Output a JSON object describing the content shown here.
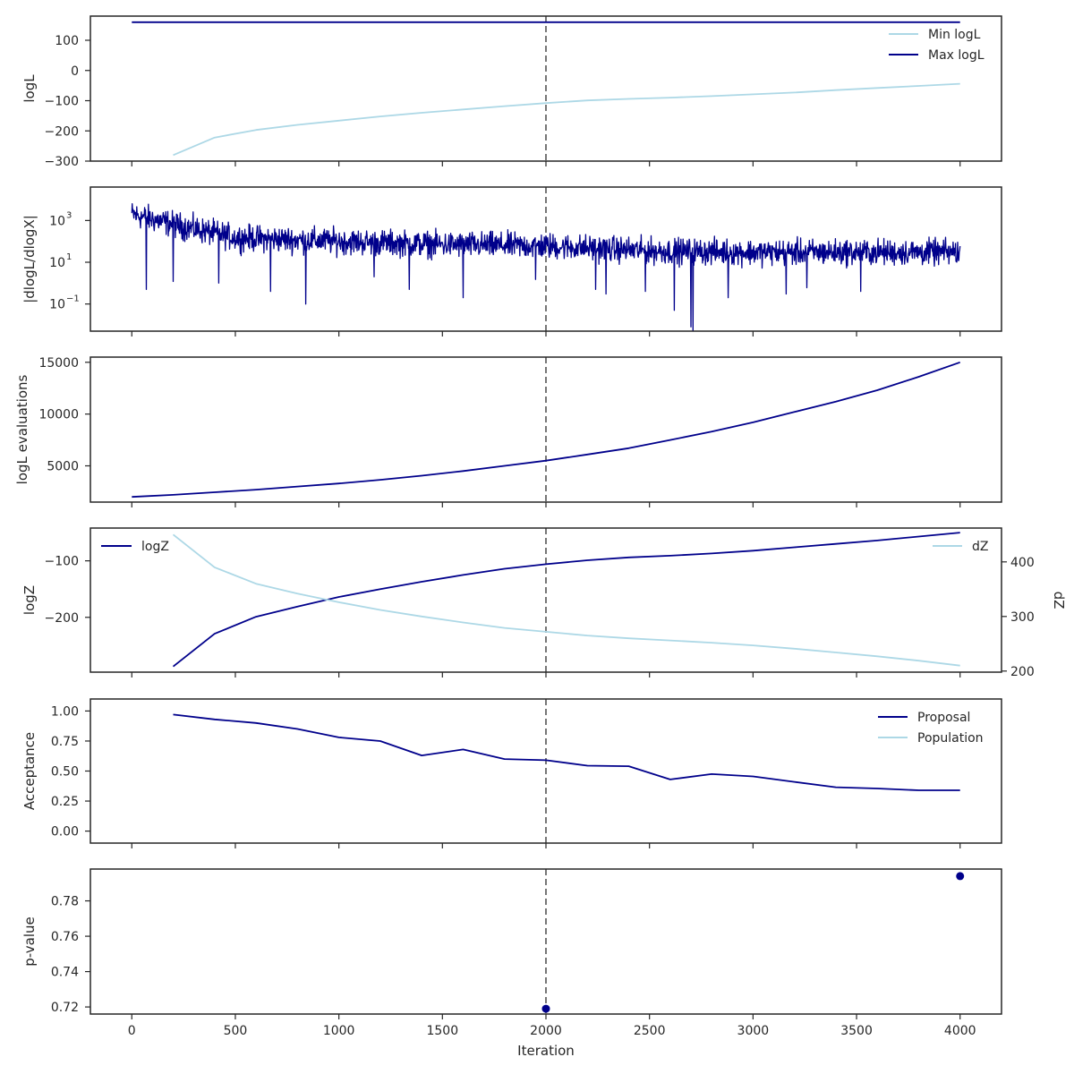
{
  "chart_data": [
    {
      "type": "line",
      "ylabel": "logL",
      "ylim": [
        -300,
        180
      ],
      "yticks": [
        -300,
        -200,
        -100,
        0,
        100
      ],
      "legend_position": "top-right",
      "series": [
        {
          "name": "Min logL",
          "color": "#add8e6",
          "x": [
            200,
            400,
            600,
            800,
            1000,
            1200,
            1400,
            1600,
            1800,
            2000,
            2200,
            2400,
            2600,
            2800,
            3000,
            3200,
            3400,
            3600,
            3800,
            4000
          ],
          "y": [
            -280,
            -222,
            -197,
            -180,
            -166,
            -152,
            -140,
            -129,
            -118,
            -108,
            -99,
            -94,
            -90,
            -85,
            -79,
            -73,
            -65,
            -58,
            -51,
            -44
          ]
        },
        {
          "name": "Max logL",
          "color": "#00008b",
          "x": [
            0,
            4000
          ],
          "y": [
            160,
            160
          ]
        }
      ]
    },
    {
      "type": "line",
      "ylabel": "|dlogL/dlogX|",
      "yscale": "log",
      "ylim": [
        0.005,
        40000
      ],
      "yticks": [
        0.1,
        10,
        1000
      ],
      "ytick_labels": [
        "10",
        "10",
        "10"
      ],
      "ytick_exponents": [
        "−1",
        "1",
        "3"
      ],
      "series": [
        {
          "name": "",
          "color": "#00008b",
          "noisy": true,
          "x": [
            0,
            250,
            500,
            1000,
            1500,
            2000,
            2500,
            3000,
            3500,
            4000
          ],
          "y": [
            2000,
            500,
            150,
            100,
            70,
            60,
            35,
            30,
            30,
            30
          ],
          "noise_decades": 0.45,
          "dips": [
            [
              70,
              0.5
            ],
            [
              200,
              1.2
            ],
            [
              420,
              1.0
            ],
            [
              670,
              0.4
            ],
            [
              840,
              0.1
            ],
            [
              1170,
              2
            ],
            [
              1340,
              0.5
            ],
            [
              1600,
              0.2
            ],
            [
              1950,
              1.5
            ],
            [
              2240,
              0.5
            ],
            [
              2290,
              0.3
            ],
            [
              2480,
              0.4
            ],
            [
              2620,
              0.05
            ],
            [
              2700,
              0.008
            ],
            [
              2710,
              0.004
            ],
            [
              2880,
              0.2
            ],
            [
              3160,
              0.3
            ],
            [
              3260,
              0.6
            ],
            [
              3520,
              0.4
            ]
          ]
        }
      ]
    },
    {
      "type": "line",
      "ylabel": "logL evaluations",
      "ylim": [
        1500,
        15500
      ],
      "yticks": [
        5000,
        10000,
        15000
      ],
      "series": [
        {
          "name": "",
          "color": "#00008b",
          "x": [
            0,
            200,
            400,
            600,
            800,
            1000,
            1200,
            1400,
            1600,
            1800,
            2000,
            2200,
            2400,
            2600,
            2800,
            3000,
            3200,
            3400,
            3600,
            3800,
            4000
          ],
          "y": [
            2000,
            2200,
            2450,
            2700,
            3000,
            3300,
            3650,
            4050,
            4500,
            5000,
            5500,
            6100,
            6700,
            7500,
            8300,
            9200,
            10200,
            11200,
            12300,
            13600,
            15000
          ]
        }
      ]
    },
    {
      "type": "line",
      "ylabel": "logZ",
      "ylabel_right": "dZ",
      "ylim": [
        -297,
        -42
      ],
      "yticks": [
        -200,
        -100
      ],
      "ylim_right": [
        198,
        462
      ],
      "yticks_right": [
        200,
        300,
        400
      ],
      "series": [
        {
          "name": "logZ",
          "color": "#00008b",
          "axis": "left",
          "legend_position": "top-left",
          "x": [
            200,
            400,
            600,
            800,
            1000,
            1200,
            1400,
            1600,
            1800,
            2000,
            2200,
            2400,
            2600,
            2800,
            3000,
            3200,
            3400,
            3600,
            3800,
            4000
          ],
          "y": [
            -287,
            -229,
            -199,
            -181,
            -164,
            -150,
            -137,
            -125,
            -114,
            -106,
            -99,
            -94,
            -91,
            -87,
            -82,
            -76,
            -70,
            -64,
            -57,
            -50
          ]
        },
        {
          "name": "dZ",
          "color": "#add8e6",
          "axis": "right",
          "legend_position": "top-right",
          "x": [
            200,
            400,
            600,
            800,
            1000,
            1200,
            1400,
            1600,
            1800,
            2000,
            2200,
            2400,
            2600,
            2800,
            3000,
            3200,
            3400,
            3600,
            3800,
            4000
          ],
          "y": [
            450,
            390,
            360,
            342,
            326,
            312,
            300,
            289,
            279,
            272,
            265,
            260,
            256,
            252,
            247,
            241,
            234,
            227,
            219,
            210
          ]
        }
      ]
    },
    {
      "type": "line",
      "ylabel": "Acceptance",
      "ylim": [
        -0.1,
        1.1
      ],
      "yticks": [
        0.0,
        0.25,
        0.5,
        0.75,
        1.0
      ],
      "ytick_labels": [
        "0.00",
        "0.25",
        "0.50",
        "0.75",
        "1.00"
      ],
      "legend_position": "top-right",
      "series": [
        {
          "name": "Proposal",
          "color": "#00008b",
          "x": [
            200,
            400,
            600,
            800,
            1000,
            1200,
            1400,
            1600,
            1800,
            2000,
            2200,
            2400,
            2600,
            2800,
            3000,
            3200,
            3400,
            3600,
            3800,
            4000
          ],
          "y": [
            0.97,
            0.93,
            0.9,
            0.85,
            0.78,
            0.75,
            0.63,
            0.68,
            0.6,
            0.59,
            0.545,
            0.54,
            0.43,
            0.475,
            0.455,
            0.41,
            0.365,
            0.355,
            0.34,
            0.34
          ]
        },
        {
          "name": "Population",
          "color": "#add8e6",
          "x": [],
          "y": []
        }
      ]
    },
    {
      "type": "scatter",
      "ylabel": "p-value",
      "xlabel": "Iteration",
      "ylim": [
        0.716,
        0.798
      ],
      "yticks": [
        0.72,
        0.74,
        0.76,
        0.78
      ],
      "series": [
        {
          "name": "",
          "color": "#00008b",
          "x": [
            2000,
            4000
          ],
          "y": [
            0.719,
            0.794
          ]
        }
      ]
    }
  ],
  "shared_x": {
    "xlim": [
      -200,
      4200
    ],
    "xticks": [
      0,
      500,
      1000,
      1500,
      2000,
      2500,
      3000,
      3500,
      4000
    ],
    "vline_x": 2000,
    "vline_color": "#555555"
  }
}
